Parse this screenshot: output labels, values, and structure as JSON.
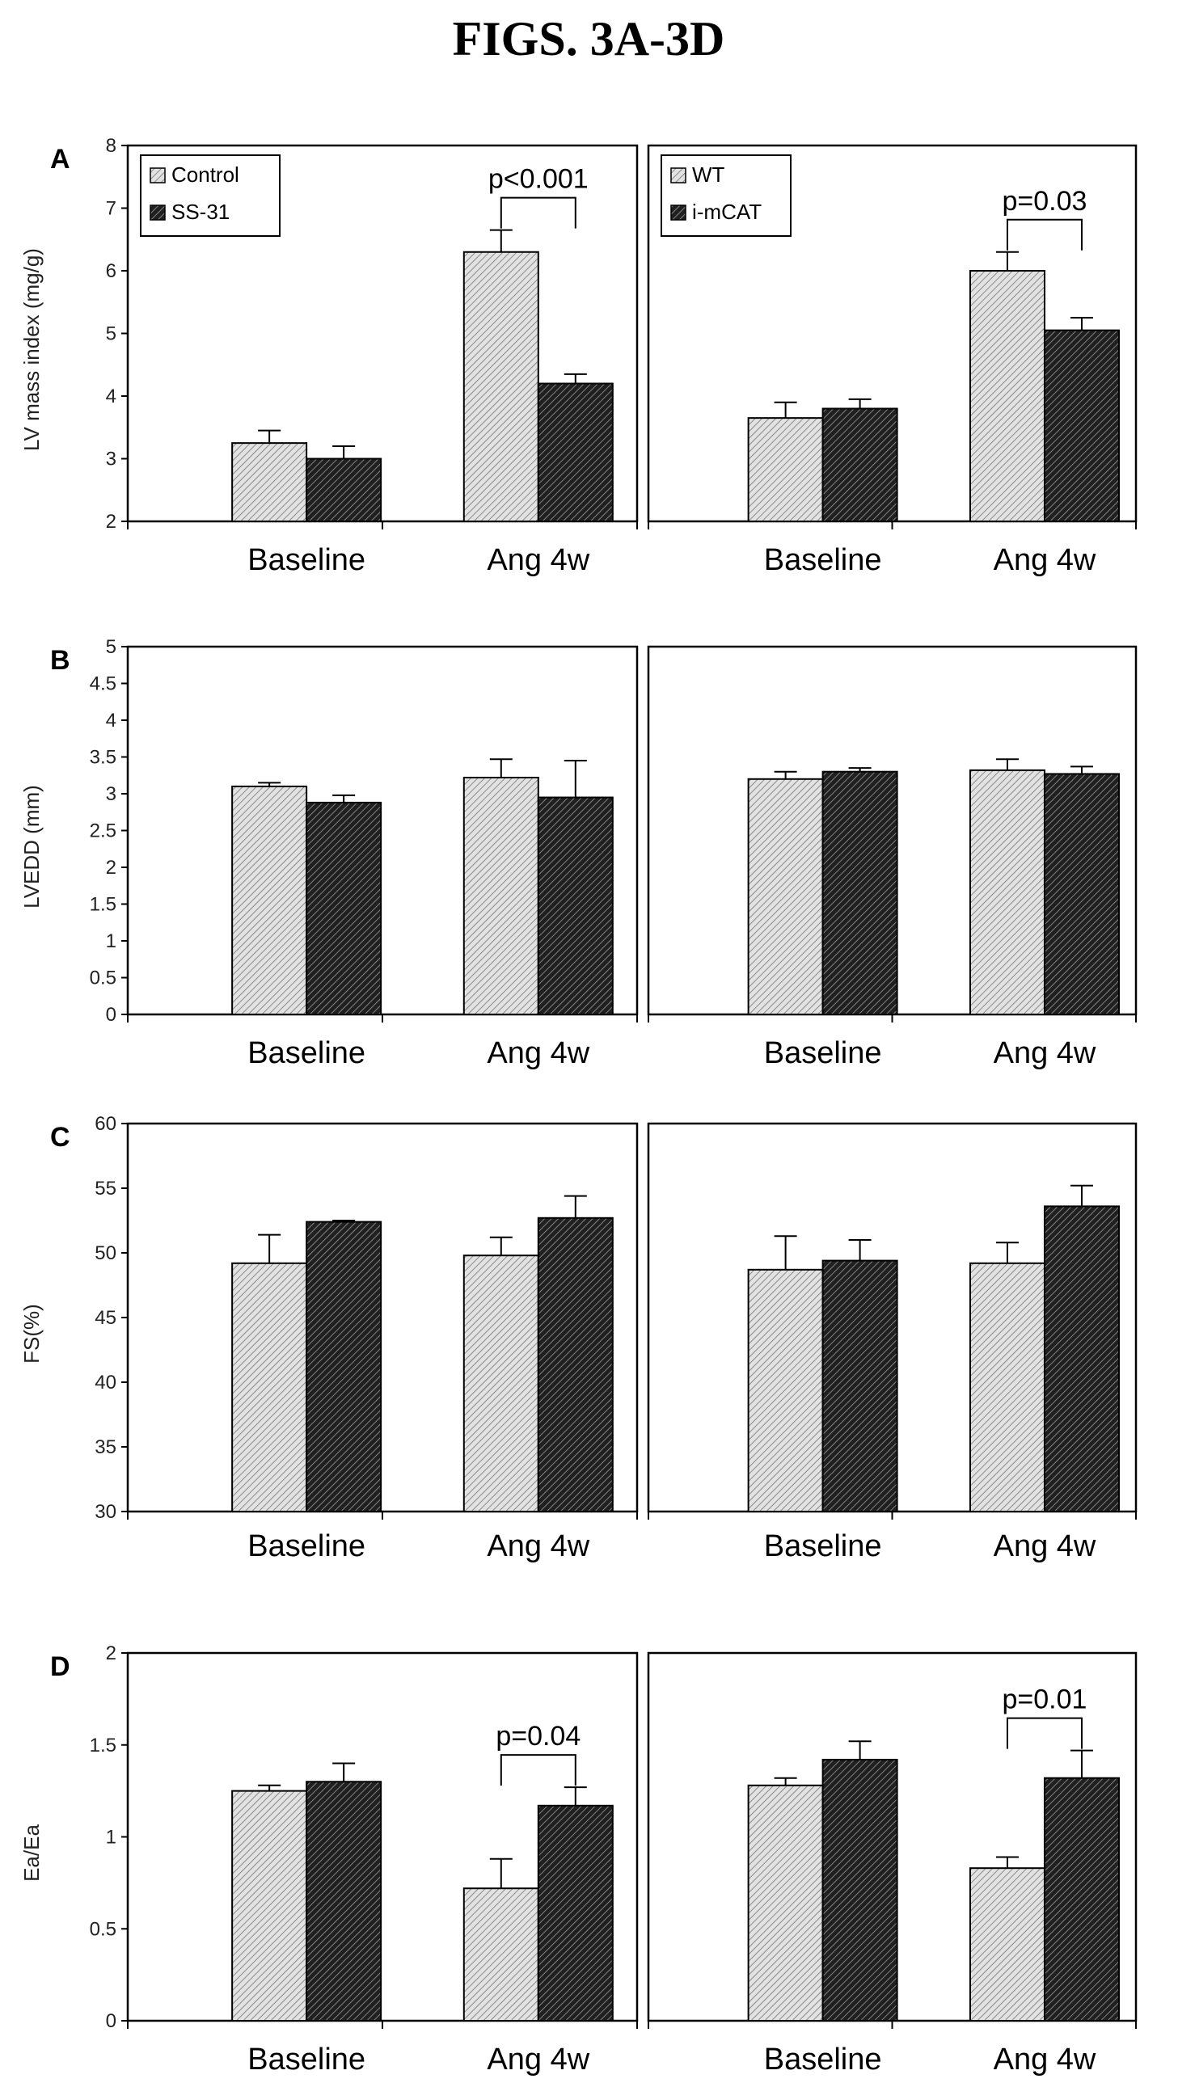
{
  "figure_title": "FIGS. 3A-3D",
  "colors": {
    "light": "#d4d4d4",
    "dark": "#3d3d3d",
    "axis": "#000000"
  },
  "chart_data": [
    {
      "type": "bar",
      "letter": "A",
      "ylabel": "LV mass index (mg/g)",
      "ylim": [
        2,
        8
      ],
      "yticks": [
        "2",
        "3",
        "4",
        "5",
        "6",
        "7",
        "8"
      ],
      "panels": [
        {
          "categories": [
            "Baseline",
            "Ang 4w"
          ],
          "legend": [
            "Control",
            "SS-31"
          ],
          "series": [
            {
              "name": "Control",
              "values": [
                3.25,
                6.3
              ],
              "errors": [
                0.2,
                0.35
              ]
            },
            {
              "name": "SS-31",
              "values": [
                3.0,
                4.2
              ],
              "errors": [
                0.2,
                0.15
              ]
            }
          ],
          "annotation": {
            "text": "p<0.001",
            "category": 1
          }
        },
        {
          "categories": [
            "Baseline",
            "Ang 4w"
          ],
          "legend": [
            "WT",
            "i-mCAT"
          ],
          "series": [
            {
              "name": "WT",
              "values": [
                3.65,
                6.0
              ],
              "errors": [
                0.25,
                0.3
              ]
            },
            {
              "name": "i-mCAT",
              "values": [
                3.8,
                5.05
              ],
              "errors": [
                0.15,
                0.2
              ]
            }
          ],
          "annotation": {
            "text": "p=0.03",
            "category": 1
          }
        }
      ]
    },
    {
      "type": "bar",
      "letter": "B",
      "ylabel": "LVEDD (mm)",
      "ylim": [
        0,
        5
      ],
      "yticks": [
        "0",
        "0.5",
        "1",
        "1.5",
        "2",
        "2.5",
        "3",
        "3.5",
        "4",
        "4.5",
        "5"
      ],
      "panels": [
        {
          "categories": [
            "Baseline",
            "Ang 4w"
          ],
          "series": [
            {
              "values": [
                3.1,
                3.22
              ],
              "errors": [
                0.05,
                0.25
              ]
            },
            {
              "values": [
                2.88,
                2.95
              ],
              "errors": [
                0.1,
                0.5
              ]
            }
          ]
        },
        {
          "categories": [
            "Baseline",
            "Ang 4w"
          ],
          "series": [
            {
              "values": [
                3.2,
                3.32
              ],
              "errors": [
                0.1,
                0.15
              ]
            },
            {
              "values": [
                3.3,
                3.27
              ],
              "errors": [
                0.05,
                0.1
              ]
            }
          ]
        }
      ]
    },
    {
      "type": "bar",
      "letter": "C",
      "ylabel": "FS(%)",
      "ylim": [
        30,
        60
      ],
      "yticks": [
        "30",
        "35",
        "40",
        "45",
        "50",
        "55",
        "60"
      ],
      "panels": [
        {
          "categories": [
            "Baseline",
            "Ang 4w"
          ],
          "series": [
            {
              "values": [
                49.2,
                49.8
              ],
              "errors": [
                2.2,
                1.4
              ]
            },
            {
              "values": [
                52.4,
                52.7
              ],
              "errors": [
                0.1,
                1.7
              ]
            }
          ]
        },
        {
          "categories": [
            "Baseline",
            "Ang 4w"
          ],
          "series": [
            {
              "values": [
                48.7,
                49.2
              ],
              "errors": [
                2.6,
                1.6
              ]
            },
            {
              "values": [
                49.4,
                53.6
              ],
              "errors": [
                1.6,
                1.6
              ]
            }
          ]
        }
      ]
    },
    {
      "type": "bar",
      "letter": "D",
      "ylabel": "Ea/Ea",
      "ylim": [
        0,
        2
      ],
      "yticks": [
        "0",
        "0.5",
        "1",
        "1.5",
        "2"
      ],
      "panels": [
        {
          "categories": [
            "Baseline",
            "Ang 4w"
          ],
          "series": [
            {
              "values": [
                1.25,
                0.72
              ],
              "errors": [
                0.03,
                0.16
              ]
            },
            {
              "values": [
                1.3,
                1.17
              ],
              "errors": [
                0.1,
                0.1
              ]
            }
          ],
          "annotation": {
            "text": "p=0.04",
            "category": 1
          }
        },
        {
          "categories": [
            "Baseline",
            "Ang 4w"
          ],
          "series": [
            {
              "values": [
                1.28,
                0.83
              ],
              "errors": [
                0.04,
                0.06
              ]
            },
            {
              "values": [
                1.42,
                1.32
              ],
              "errors": [
                0.1,
                0.15
              ]
            }
          ],
          "annotation": {
            "text": "p=0.01",
            "category": 1
          }
        }
      ]
    }
  ]
}
